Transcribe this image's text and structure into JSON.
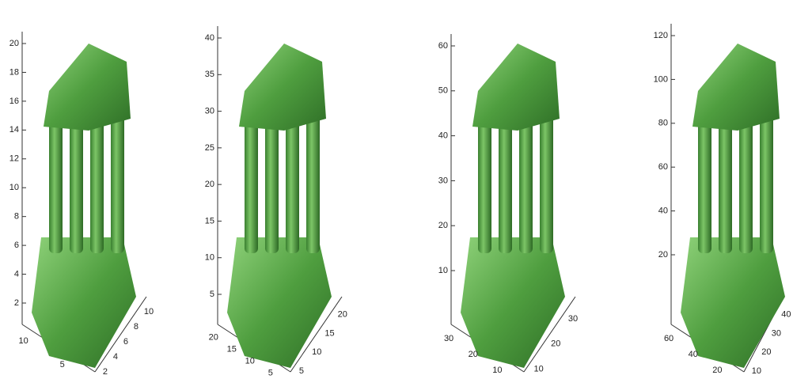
{
  "panels": [
    {
      "z_ticks": [
        2,
        4,
        6,
        8,
        10,
        12,
        14,
        16,
        18,
        20
      ],
      "left_ticks": [
        10,
        5
      ],
      "right_ticks": [
        2,
        4,
        6,
        8,
        10
      ]
    },
    {
      "z_ticks": [
        5,
        10,
        15,
        20,
        25,
        30,
        35,
        40
      ],
      "left_ticks": [
        20,
        15,
        10,
        5
      ],
      "right_ticks": [
        5,
        10,
        15,
        20
      ]
    },
    {
      "z_ticks": [
        10,
        20,
        30,
        40,
        50,
        60
      ],
      "left_ticks": [
        30,
        20,
        10
      ],
      "right_ticks": [
        10,
        20,
        30
      ]
    },
    {
      "z_ticks": [
        20,
        40,
        60,
        80,
        100,
        120
      ],
      "left_ticks": [
        60,
        40,
        20
      ],
      "right_ticks": [
        10,
        20,
        30,
        40
      ]
    }
  ]
}
